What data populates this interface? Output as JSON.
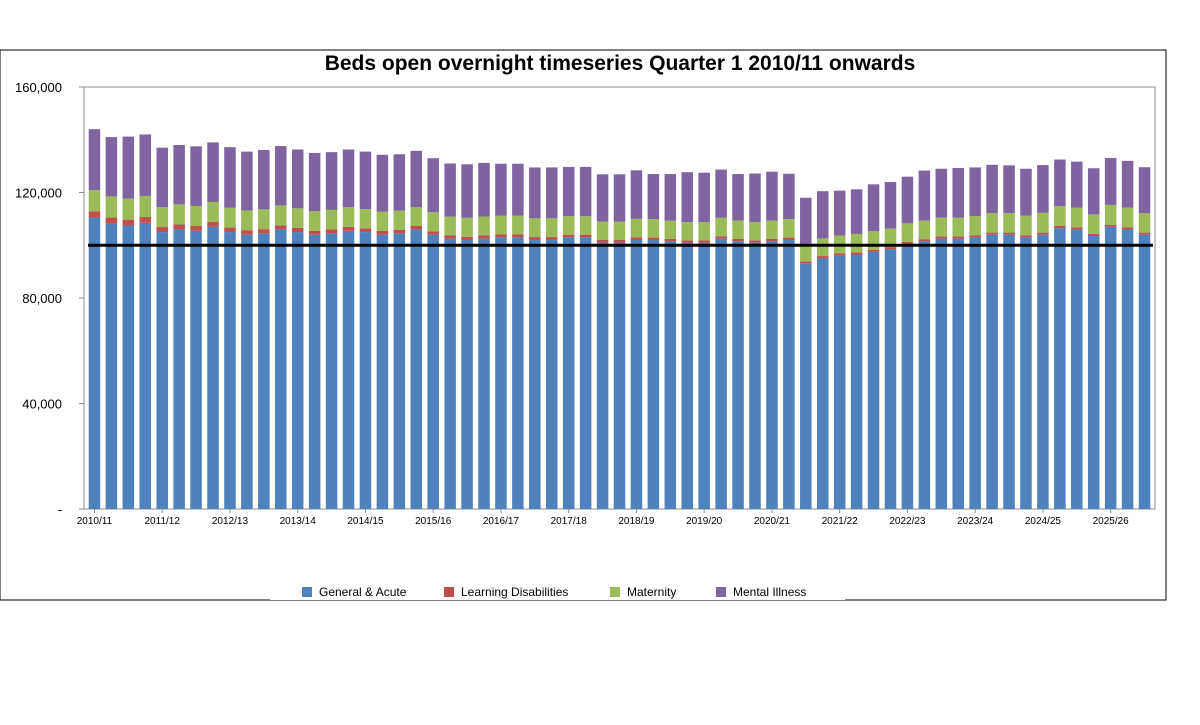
{
  "chart_data": {
    "type": "bar",
    "stacked": true,
    "title": "Beds open overnight timeseries Quarter 1 2010/11 onwards",
    "xlabel": "",
    "ylabel": "",
    "ylim": [
      0,
      160000
    ],
    "y_ticks": [
      0,
      40000,
      80000,
      120000,
      160000
    ],
    "y_tick_labels": [
      "-",
      "40,000",
      "80,000",
      "120,000",
      "160,000"
    ],
    "x_tick_labels": [
      "2010/11",
      "2011/12",
      "2012/13",
      "2013/14",
      "2014/15",
      "2015/16",
      "2016/17",
      "2017/18",
      "2018/19",
      "2019/20",
      "2020/21",
      "2021/22",
      "2022/23",
      "2023/24",
      "2024/25",
      "2025/26"
    ],
    "quarters_per_year": 4,
    "reference_line": 100000,
    "legend_position": "bottom",
    "series": [
      {
        "name": "General & Acute",
        "color": "#4f81bd",
        "values": [
          110500,
          108200,
          107500,
          108500,
          105000,
          106000,
          105500,
          107000,
          105000,
          104000,
          104500,
          106000,
          105000,
          104000,
          104500,
          105500,
          105000,
          104000,
          104500,
          106000,
          104000,
          102500,
          102000,
          102500,
          103000,
          103000,
          102000,
          102000,
          103000,
          103000,
          101000,
          101000,
          102000,
          102000,
          101500,
          101000,
          101000,
          102500,
          101500,
          101000,
          101500,
          102000,
          93000,
          95000,
          96000,
          96500,
          97500,
          98500,
          100500,
          101500,
          102500,
          102500,
          103000,
          104000,
          104000,
          103000,
          104000,
          106500,
          106000,
          103500,
          107000,
          106000,
          104000
        ]
      },
      {
        "name": "Learning Disabilities",
        "color": "#c0504d",
        "values": [
          2400,
          2300,
          2200,
          2200,
          1900,
          1900,
          1800,
          1800,
          1700,
          1700,
          1600,
          1600,
          1600,
          1500,
          1500,
          1500,
          1400,
          1400,
          1300,
          1300,
          1300,
          1200,
          1200,
          1200,
          1100,
          1100,
          1100,
          1100,
          1000,
          1000,
          1000,
          1000,
          1000,
          900,
          900,
          900,
          900,
          900,
          900,
          900,
          900,
          900,
          900,
          900,
          900,
          800,
          800,
          800,
          800,
          800,
          800,
          800,
          800,
          800,
          800,
          800,
          800,
          800,
          800,
          800,
          800,
          800,
          800
        ]
      },
      {
        "name": "Maternity",
        "color": "#9bbb59",
        "values": [
          8000,
          8000,
          8000,
          8000,
          7600,
          7600,
          7600,
          7600,
          7500,
          7500,
          7500,
          7500,
          7400,
          7400,
          7400,
          7400,
          7300,
          7300,
          7300,
          7200,
          7200,
          7200,
          7200,
          7200,
          7100,
          7100,
          7100,
          7100,
          7000,
          7000,
          7000,
          7000,
          7000,
          7000,
          6900,
          6900,
          6900,
          7000,
          7000,
          6900,
          6900,
          7000,
          6500,
          6700,
          6800,
          7000,
          7000,
          7000,
          7000,
          7000,
          7200,
          7200,
          7300,
          7400,
          7400,
          7400,
          7500,
          7500,
          7500,
          7400,
          7500,
          7500,
          7400
        ]
      },
      {
        "name": "Mental Illness",
        "color": "#8064a2",
        "values": [
          23100,
          22500,
          23500,
          23300,
          22500,
          22500,
          22600,
          22600,
          23000,
          22300,
          22500,
          22500,
          22300,
          22100,
          21900,
          21900,
          21800,
          21600,
          21400,
          21300,
          20500,
          20100,
          20300,
          20300,
          19700,
          19700,
          19300,
          19300,
          18700,
          18700,
          17900,
          17900,
          18400,
          17100,
          17700,
          18900,
          18700,
          18300,
          17600,
          18400,
          18600,
          17200,
          17600,
          17900,
          17000,
          16900,
          17800,
          17700,
          17700,
          19000,
          18500,
          18800,
          18400,
          18300,
          18100,
          17800,
          18100,
          17700,
          17400,
          17500,
          17800,
          17700,
          17400
        ]
      }
    ]
  }
}
